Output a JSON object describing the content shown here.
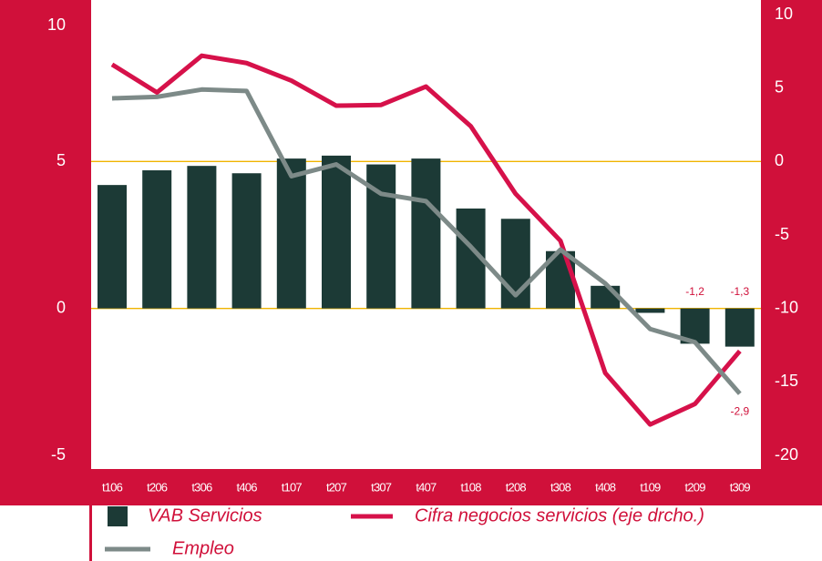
{
  "chart_data": {
    "type": "bar",
    "categories": [
      "t106",
      "t206",
      "t306",
      "t406",
      "t107",
      "t207",
      "t307",
      "t407",
      "t108",
      "t208",
      "t308",
      "t408",
      "t109",
      "t209",
      "t309"
    ],
    "series": [
      {
        "name": "VAB Servicios",
        "type": "bar",
        "color": "#1c3a36",
        "values": [
          4.2,
          4.7,
          4.85,
          4.6,
          5.1,
          5.2,
          4.9,
          5.1,
          3.4,
          3.05,
          1.95,
          0.77,
          -0.15,
          -1.2,
          -1.3
        ],
        "value_labels": [
          null,
          null,
          null,
          null,
          null,
          null,
          null,
          null,
          null,
          null,
          null,
          null,
          null,
          "-1,2",
          "-1,3"
        ]
      },
      {
        "name": "Cifra negocios servicios (eje drcho.)",
        "type": "line",
        "axis": "y2",
        "color": "#d6114a",
        "values": [
          6.6,
          4.7,
          7.2,
          6.7,
          5.5,
          3.8,
          3.85,
          5.1,
          2.4,
          -2.2,
          -5.4,
          -14.4,
          -17.9,
          -16.5,
          -12.9
        ]
      },
      {
        "name": "Empleo",
        "type": "line",
        "color": "#7d8a88",
        "values": [
          7.15,
          7.2,
          7.45,
          7.4,
          4.5,
          4.9,
          3.9,
          3.65,
          2.1,
          0.45,
          2.0,
          0.85,
          -0.7,
          -1.15,
          -2.9
        ],
        "value_labels": [
          null,
          null,
          null,
          null,
          null,
          null,
          null,
          null,
          null,
          null,
          null,
          null,
          null,
          null,
          "-2,9"
        ]
      }
    ],
    "ylim": [
      -5,
      10
    ],
    "yticks": [
      -5,
      0,
      5,
      10
    ],
    "y2lim": [
      -20,
      10
    ],
    "y2ticks": [
      -20,
      -15,
      -10,
      -5,
      0,
      5,
      10
    ],
    "grid_values": [
      0,
      5
    ],
    "grid_color": "#f0b400"
  }
}
